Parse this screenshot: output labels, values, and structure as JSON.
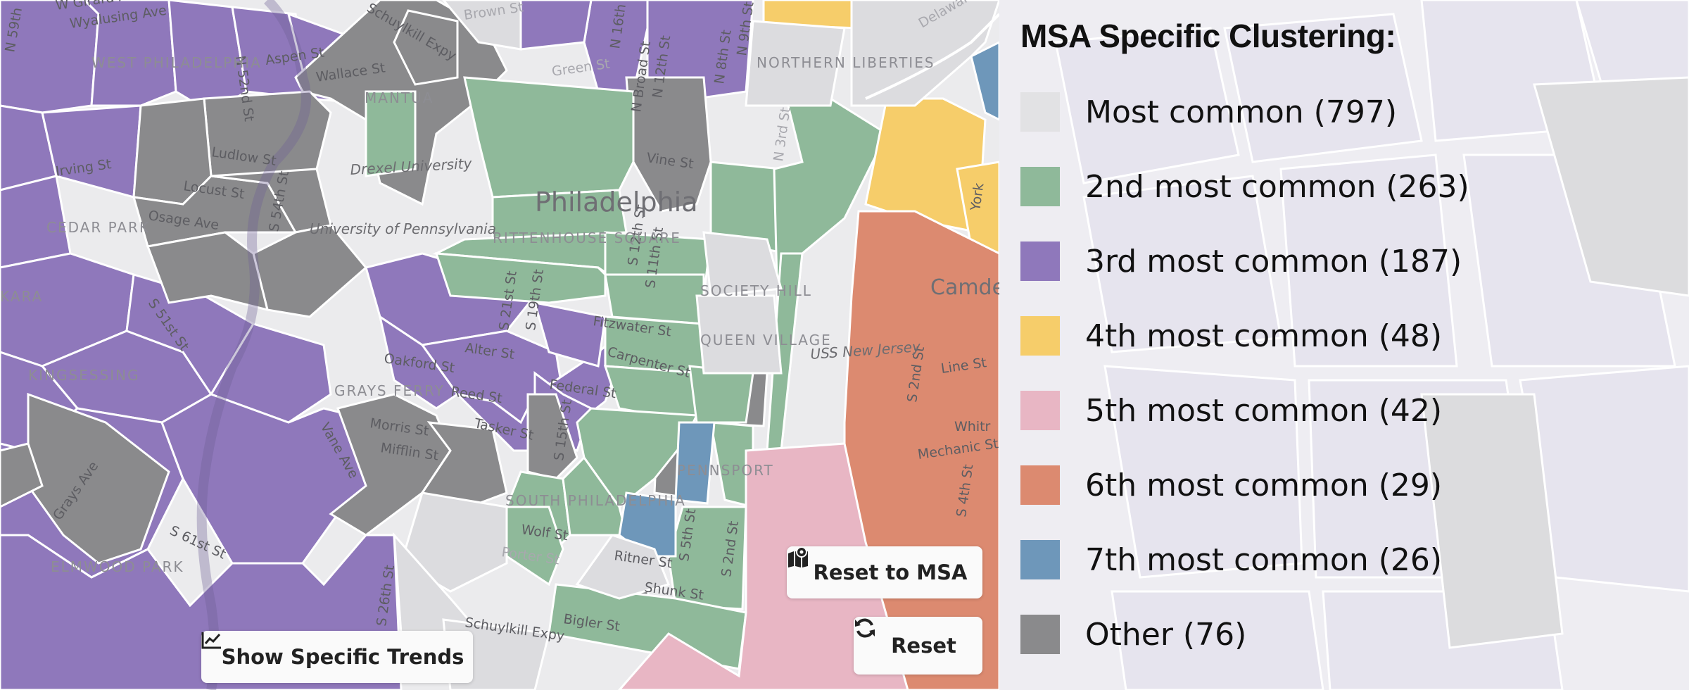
{
  "map": {
    "city_label": "Philadelphia",
    "streets": {
      "w_girard": "W Girard Ave",
      "wyalusing": "Wyalusing Ave",
      "n59": "N 59th",
      "n52": "N 52nd St",
      "aspen": "Aspen St",
      "wallace": "Wallace St",
      "schuylkill_expy_n": "Schuylkill Expy",
      "brown": "Brown St",
      "green": "Green St",
      "n16": "N 16th",
      "n12": "N 12th St",
      "n8": "N 8th St",
      "n9": "N 9th St",
      "broad": "N Broad St",
      "delaware": "Delaware",
      "ludlow": "Ludlow St",
      "locust": "Locust St",
      "irving": "Irving St",
      "osage": "Osage Ave",
      "s54": "S 54th St",
      "vine": "Vine St",
      "n3": "N 3rd St",
      "s51": "S 51st St",
      "s21": "S 21st St",
      "s19": "S 19th St",
      "fitzwater": "Fitzwater St",
      "carpenter": "Carpenter St",
      "oakford": "Oakford St",
      "alter": "Alter St",
      "federal": "Federal St",
      "reed": "Reed St",
      "morris": "Morris St",
      "tasker": "Tasker St",
      "mifflin": "Mifflin St",
      "s15": "S 15th St",
      "s61": "S 61st St",
      "grays_ave": "Grays Ave",
      "s26": "S 26th St",
      "wolf": "Wolf St",
      "porter": "Porter St",
      "ritner": "Ritner St",
      "shunk": "Shunk St",
      "s5": "S 5th St",
      "s2": "S 2nd St",
      "bigler": "Bigler St",
      "schuylkill_expy_s": "Schuylkill Expy",
      "s2_nj": "S 2nd St",
      "line": "Line St",
      "mechanic": "Mechanic St",
      "s4": "S 4th St",
      "vane": "Vane Ave",
      "s12": "S 12th St",
      "s11": "S 11th St",
      "york": "York",
      "whit": "Whitr"
    },
    "places": {
      "drexel": "Drexel University",
      "upenn": "University of Pennsylvania",
      "uss_nj": "USS New Jersey",
      "camden": "Camden"
    },
    "neighborhoods": {
      "west_phila": "WEST PHILADELPHIA",
      "mantua": "MANTUA",
      "cedar_park": "CEDAR PARK",
      "rittenhouse": "RITTENHOUSE SQUARE",
      "society_hill": "SOCIETY HILL",
      "queen_village": "QUEEN VILLAGE",
      "grays_ferry": "GRAYS FERRY",
      "kingsessing": "KINGSESSING",
      "south_phila": "SOUTH PHILADELPHIA",
      "pennsport": "PENNSPORT",
      "elmwood_park": "ELMWOOD PARK",
      "northern_liberties": "NORTHERN LIBERTIES",
      "kara": "KARA"
    }
  },
  "legend": {
    "title": "MSA Specific Clustering:",
    "items": [
      {
        "label": "Most common (797)",
        "color": "#e2e2e4"
      },
      {
        "label": "2nd most common (263)",
        "color": "#8fb99a"
      },
      {
        "label": "3rd most common (187)",
        "color": "#8f78bb"
      },
      {
        "label": "4th most common (48)",
        "color": "#f6cd6a"
      },
      {
        "label": "5th most common (42)",
        "color": "#e8b6c4"
      },
      {
        "label": "6th most common (29)",
        "color": "#dc8a70"
      },
      {
        "label": "7th most common (26)",
        "color": "#6e97ba"
      },
      {
        "label": "Other (76)",
        "color": "#8a8a8c"
      }
    ]
  },
  "buttons": {
    "reset_msa": {
      "label": "Reset to MSA",
      "icon": "map-marker-icon"
    },
    "reset": {
      "label": "Reset",
      "icon": "refresh-icon"
    },
    "trends": {
      "label": "Show Specific Trends",
      "icon": "line-chart-icon"
    }
  }
}
